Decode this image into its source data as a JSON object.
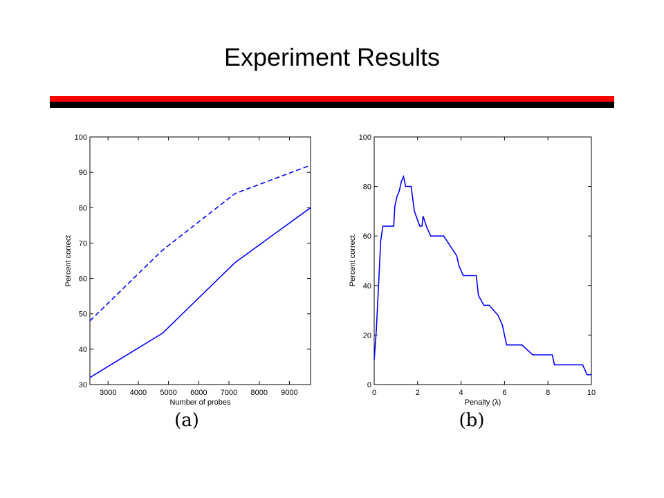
{
  "slide": {
    "title": "Experiment Results"
  },
  "colors": {
    "accent_red": "#ff0000",
    "rule_black": "#000000",
    "series_blue": "#0000ff"
  },
  "chart_data": [
    {
      "type": "line",
      "panel_label": "(a)",
      "title": "",
      "xlabel": "Number of probes",
      "ylabel": "Percent correct",
      "xlim": [
        2400,
        9700
      ],
      "ylim": [
        30,
        100
      ],
      "xticks": [
        3000,
        4000,
        5000,
        6000,
        7000,
        8000,
        9000
      ],
      "yticks": [
        30,
        40,
        50,
        60,
        70,
        80,
        90,
        100
      ],
      "grid": false,
      "series": [
        {
          "style": "dashed",
          "x": [
            2400,
            4800,
            7200,
            9700
          ],
          "y": [
            48,
            68,
            84,
            92
          ]
        },
        {
          "style": "solid",
          "x": [
            2400,
            4800,
            7200,
            9700
          ],
          "y": [
            32,
            44.5,
            64.5,
            80
          ]
        }
      ]
    },
    {
      "type": "line",
      "panel_label": "(b)",
      "title": "",
      "xlabel": "Penalty (λ)",
      "ylabel": "Percent correct",
      "xlim": [
        0,
        10
      ],
      "ylim": [
        0,
        100
      ],
      "xticks": [
        0,
        2,
        4,
        6,
        8,
        10
      ],
      "yticks": [
        0,
        20,
        40,
        60,
        80,
        100
      ],
      "grid": false,
      "series": [
        {
          "style": "solid",
          "x": [
            0,
            0.1,
            0.2,
            0.3,
            0.4,
            0.9,
            0.95,
            1.05,
            1.15,
            1.25,
            1.35,
            1.45,
            1.7,
            1.85,
            2.1,
            2.2,
            2.25,
            2.4,
            2.6,
            3.2,
            3.8,
            3.9,
            4.1,
            4.7,
            4.8,
            5.05,
            5.3,
            5.7,
            5.9,
            6.1,
            6.2,
            6.8,
            7.3,
            8.2,
            8.3,
            9.6,
            9.8,
            10
          ],
          "y": [
            10,
            22,
            40,
            58,
            64,
            64,
            72,
            76,
            78,
            82,
            84,
            80,
            80,
            70,
            64,
            64,
            68,
            64,
            60,
            60,
            52,
            48,
            44,
            44,
            36,
            32,
            32,
            28,
            24,
            16,
            16,
            16,
            12,
            12,
            8,
            8,
            4,
            4
          ]
        }
      ]
    }
  ]
}
